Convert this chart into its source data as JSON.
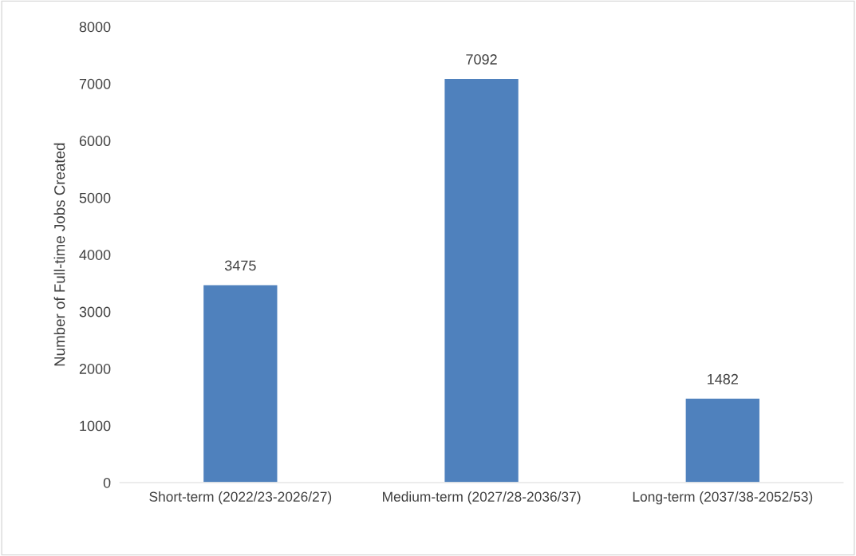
{
  "chart_data": {
    "type": "bar",
    "ylabel": "Number of Full-time Jobs Created",
    "categories": [
      "Short-term (2022/23-2026/27)",
      "Medium-term (2027/28-2036/37)",
      "Long-term (2037/38-2052/53)"
    ],
    "values": [
      3475,
      7092,
      1482
    ],
    "color": "#4f81bd",
    "ylim": [
      0,
      8000
    ],
    "yticks": [
      0,
      1000,
      2000,
      3000,
      4000,
      5000,
      6000,
      7000,
      8000
    ],
    "data_labels": true,
    "grid": false,
    "legend": false
  }
}
